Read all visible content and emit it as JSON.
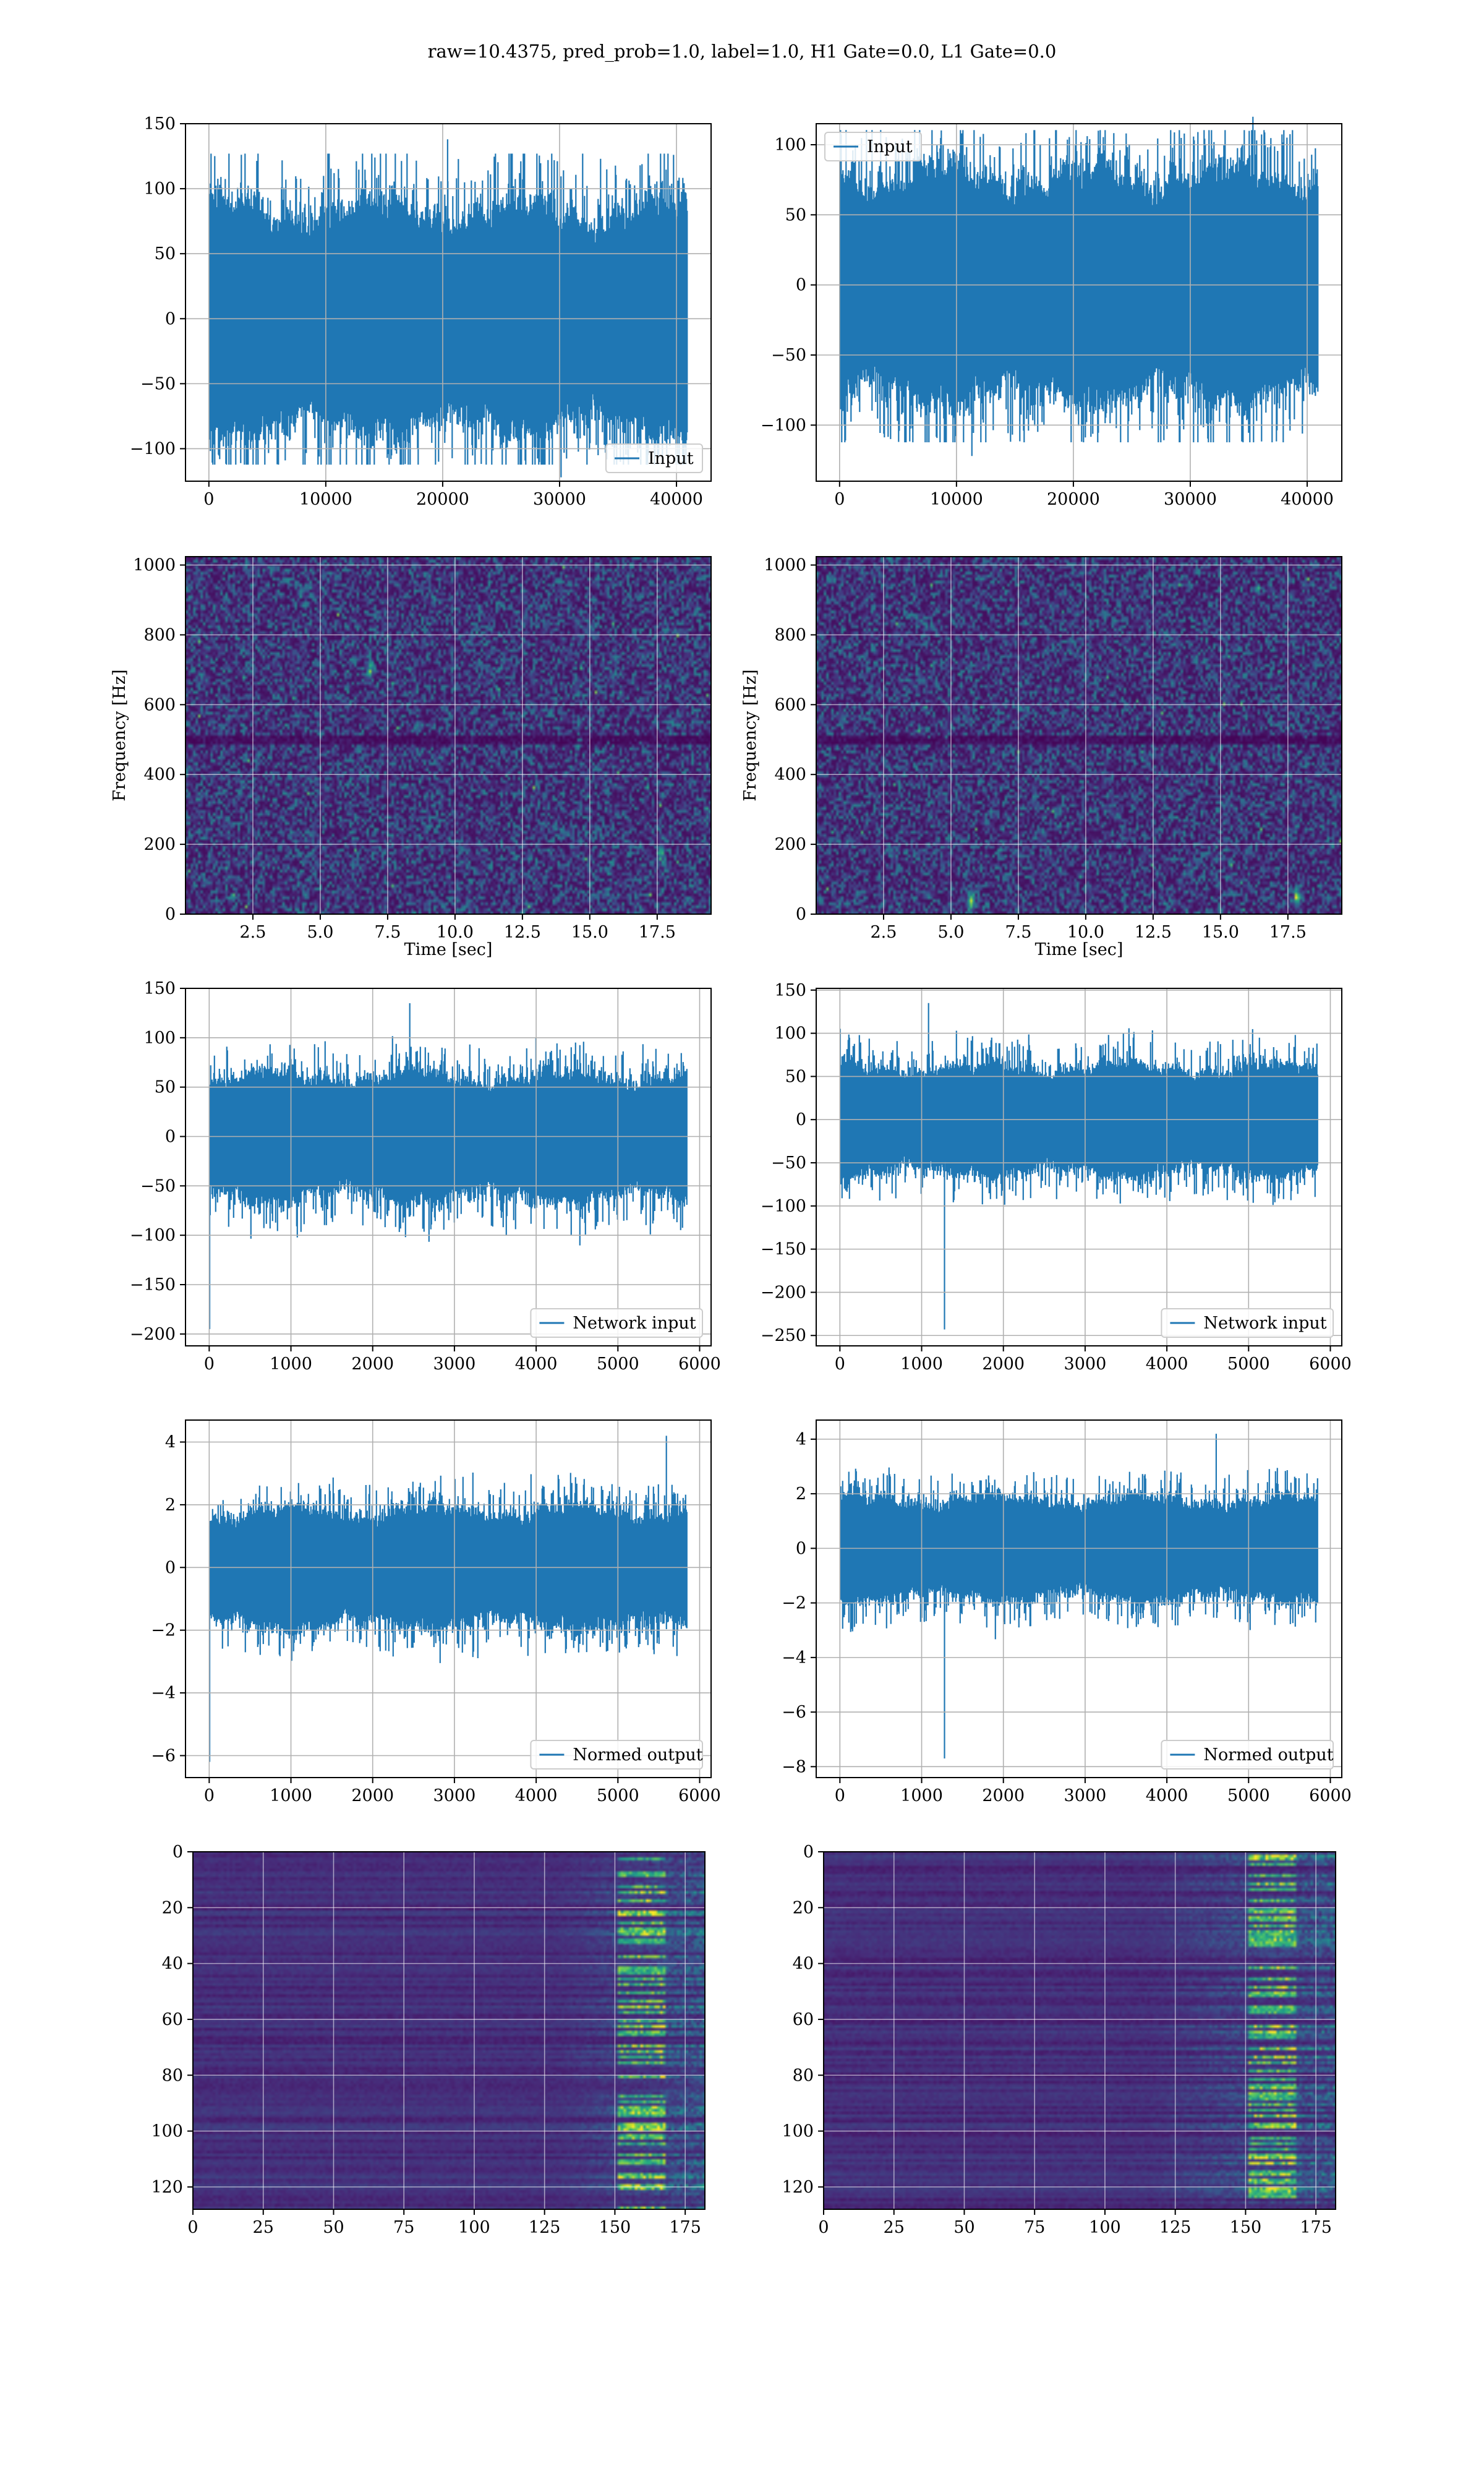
{
  "title": "raw=10.4375, pred_prob=1.0, label=1.0, H1 Gate=0.0, L1 Gate=0.0",
  "colors": {
    "line": "#1f77b4",
    "grid": "#b0b0b0",
    "viridis_low": "#440154",
    "viridis_high": "#fde725"
  },
  "chart_data": [
    {
      "id": "h1-input",
      "type": "line",
      "series": [
        {
          "name": "Input"
        }
      ],
      "legend": "bottom-right",
      "grid": true,
      "xlim": [
        -2000,
        42960
      ],
      "ylim": [
        -125,
        150
      ],
      "xticks": [
        0,
        10000,
        20000,
        30000,
        40000
      ],
      "xticklabels": [
        "0",
        "10000",
        "20000",
        "30000",
        "40000"
      ],
      "yticks": [
        -100,
        -50,
        0,
        50,
        100,
        150
      ],
      "yticklabels": [
        "−100",
        "−50",
        "0",
        "50",
        "100",
        "150"
      ],
      "signal": {
        "n_samples": 40960,
        "envelope": 75,
        "min": -122,
        "max": 138
      }
    },
    {
      "id": "l1-input",
      "type": "line",
      "series": [
        {
          "name": "Input"
        }
      ],
      "legend": "top-left",
      "grid": true,
      "xlim": [
        -2000,
        42960
      ],
      "ylim": [
        -140,
        115
      ],
      "xticks": [
        0,
        10000,
        20000,
        30000,
        40000
      ],
      "xticklabels": [
        "0",
        "10000",
        "20000",
        "30000",
        "40000"
      ],
      "yticks": [
        -100,
        -50,
        0,
        50,
        100
      ],
      "yticklabels": [
        "−100",
        "−50",
        "0",
        "50",
        "100"
      ],
      "signal": {
        "n_samples": 40960,
        "envelope": 70,
        "min": -122,
        "max": 120
      }
    },
    {
      "id": "h1-spectrogram",
      "type": "heatmap",
      "grid": true,
      "xlabel": "Time [sec]",
      "ylabel": "Frequency [Hz]",
      "xlim": [
        0,
        19.5
      ],
      "ylim": [
        0,
        1024
      ],
      "xticks": [
        2.5,
        5,
        7.5,
        10,
        12.5,
        15,
        17.5
      ],
      "xticklabels": [
        "2.5",
        "5.0",
        "7.5",
        "10.0",
        "12.5",
        "15.0",
        "17.5"
      ],
      "yticks": [
        0,
        200,
        400,
        600,
        800,
        1000
      ],
      "yticklabels": [
        "0",
        "200",
        "400",
        "600",
        "800",
        "1000"
      ],
      "colormap": "viridis",
      "notes": "dark band near 500 Hz"
    },
    {
      "id": "l1-spectrogram",
      "type": "heatmap",
      "grid": true,
      "xlabel": "Time [sec]",
      "ylabel": "Frequency [Hz]",
      "xlim": [
        0,
        19.5
      ],
      "ylim": [
        0,
        1024
      ],
      "xticks": [
        2.5,
        5,
        7.5,
        10,
        12.5,
        15,
        17.5
      ],
      "xticklabels": [
        "2.5",
        "5.0",
        "7.5",
        "10.0",
        "12.5",
        "15.0",
        "17.5"
      ],
      "yticks": [
        0,
        200,
        400,
        600,
        800,
        1000
      ],
      "yticklabels": [
        "0",
        "200",
        "400",
        "600",
        "800",
        "1000"
      ],
      "colormap": "viridis",
      "notes": "bright blips near 5.7 s and 17.8 s at low frequency"
    },
    {
      "id": "h1-network-input",
      "type": "line",
      "series": [
        {
          "name": "Network input"
        }
      ],
      "legend": "bottom-right",
      "grid": true,
      "xlim": [
        -290,
        6140
      ],
      "ylim": [
        -212,
        150
      ],
      "xticks": [
        0,
        1000,
        2000,
        3000,
        4000,
        5000,
        6000
      ],
      "xticklabels": [
        "0",
        "1000",
        "2000",
        "3000",
        "4000",
        "5000",
        "6000"
      ],
      "yticks": [
        -200,
        -150,
        -100,
        -50,
        0,
        50,
        100,
        150
      ],
      "yticklabels": [
        "−200",
        "−150",
        "−100",
        "−50",
        "0",
        "50",
        "100",
        "150"
      ],
      "signal": {
        "n_samples": 5850,
        "envelope": 55,
        "min": -195,
        "max": 135,
        "spike_x": 5
      }
    },
    {
      "id": "l1-network-input",
      "type": "line",
      "series": [
        {
          "name": "Network input"
        }
      ],
      "legend": "bottom-right",
      "grid": true,
      "xlim": [
        -290,
        6140
      ],
      "ylim": [
        -262,
        152
      ],
      "xticks": [
        0,
        1000,
        2000,
        3000,
        4000,
        5000,
        6000
      ],
      "xticklabels": [
        "0",
        "1000",
        "2000",
        "3000",
        "4000",
        "5000",
        "6000"
      ],
      "yticks": [
        -250,
        -200,
        -150,
        -100,
        -50,
        0,
        50,
        100,
        150
      ],
      "yticklabels": [
        "−250",
        "−200",
        "−150",
        "−100",
        "−50",
        "0",
        "50",
        "100",
        "150"
      ],
      "signal": {
        "n_samples": 5850,
        "envelope": 55,
        "min": -243,
        "max": 135,
        "spike_x": 1280
      }
    },
    {
      "id": "h1-normed-output",
      "type": "line",
      "series": [
        {
          "name": "Normed output"
        }
      ],
      "legend": "bottom-right",
      "grid": true,
      "xlim": [
        -290,
        6140
      ],
      "ylim": [
        -6.7,
        4.7
      ],
      "xticks": [
        0,
        1000,
        2000,
        3000,
        4000,
        5000,
        6000
      ],
      "xticklabels": [
        "0",
        "1000",
        "2000",
        "3000",
        "4000",
        "5000",
        "6000"
      ],
      "yticks": [
        -6,
        -4,
        -2,
        0,
        2,
        4
      ],
      "yticklabels": [
        "−6",
        "−4",
        "−2",
        "0",
        "2",
        "4"
      ],
      "signal": {
        "n_samples": 5850,
        "envelope": 1.6,
        "min": -6.2,
        "max": 4.2,
        "spike_x": 5
      }
    },
    {
      "id": "l1-normed-output",
      "type": "line",
      "series": [
        {
          "name": "Normed output"
        }
      ],
      "legend": "bottom-right",
      "grid": true,
      "xlim": [
        -290,
        6140
      ],
      "ylim": [
        -8.4,
        4.7
      ],
      "xticks": [
        0,
        1000,
        2000,
        3000,
        4000,
        5000,
        6000
      ],
      "xticklabels": [
        "0",
        "1000",
        "2000",
        "3000",
        "4000",
        "5000",
        "6000"
      ],
      "yticks": [
        -8,
        -6,
        -4,
        -2,
        0,
        2,
        4
      ],
      "yticklabels": [
        "−8",
        "−6",
        "−4",
        "−2",
        "0",
        "2",
        "4"
      ],
      "signal": {
        "n_samples": 5850,
        "envelope": 1.6,
        "min": -7.7,
        "max": 4.2,
        "spike_x": 1280
      }
    },
    {
      "id": "h1-feature-map",
      "type": "heatmap",
      "grid": true,
      "xlim": [
        0,
        182
      ],
      "ylim": [
        128,
        0
      ],
      "xticks": [
        0,
        25,
        50,
        75,
        100,
        125,
        150,
        175
      ],
      "xticklabels": [
        "0",
        "25",
        "50",
        "75",
        "100",
        "125",
        "150",
        "175"
      ],
      "yticks": [
        0,
        20,
        40,
        60,
        80,
        100,
        120
      ],
      "yticklabels": [
        "0",
        "20",
        "40",
        "60",
        "80",
        "100",
        "120"
      ],
      "colormap": "viridis",
      "notes": "activations concentrated at columns 140–180"
    },
    {
      "id": "l1-feature-map",
      "type": "heatmap",
      "grid": true,
      "xlim": [
        0,
        182
      ],
      "ylim": [
        128,
        0
      ],
      "xticks": [
        0,
        25,
        50,
        75,
        100,
        125,
        150,
        175
      ],
      "xticklabels": [
        "0",
        "25",
        "50",
        "75",
        "100",
        "125",
        "150",
        "175"
      ],
      "yticks": [
        0,
        20,
        40,
        60,
        80,
        100,
        120
      ],
      "yticklabels": [
        "0",
        "20",
        "40",
        "60",
        "80",
        "100",
        "120"
      ],
      "colormap": "viridis",
      "notes": "activations concentrated at columns 120–180"
    }
  ]
}
